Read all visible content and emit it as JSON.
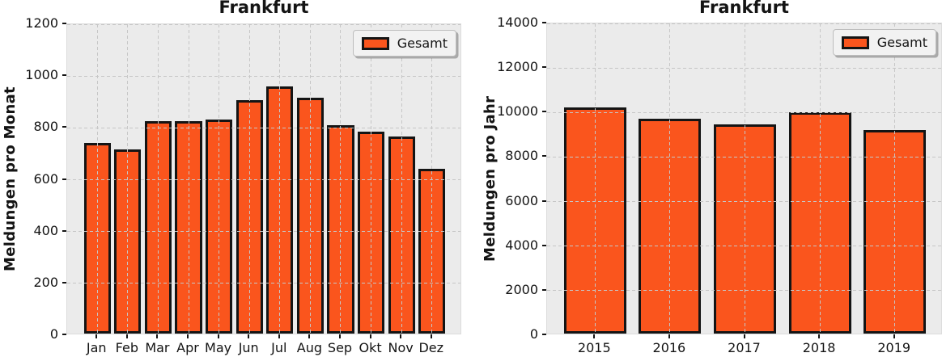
{
  "colors": {
    "figure_bg": "#ffffff",
    "plot_bg": "#ebebeb",
    "bar_fill": "#fa551d",
    "bar_edge": "#141414",
    "grid": "#c6c6c6",
    "text": "#141414",
    "legend_bg": "#f2f2f2",
    "legend_border": "#bdbdbd"
  },
  "chart_data": [
    {
      "type": "bar",
      "title": "Frankfurt",
      "xlabel": "",
      "ylabel": "Meldungen pro Monat",
      "categories": [
        "Jan",
        "Feb",
        "Mar",
        "Apr",
        "May",
        "Jun",
        "Jul",
        "Aug",
        "Sep",
        "Okt",
        "Nov",
        "Dez"
      ],
      "values": [
        730,
        705,
        815,
        815,
        820,
        895,
        950,
        905,
        800,
        775,
        755,
        630
      ],
      "ylim": [
        0,
        1200
      ],
      "yticks": [
        0,
        200,
        400,
        600,
        800,
        1000,
        1200
      ],
      "grid": "dashed, both axes, drawn above bars",
      "legend": {
        "position": "upper-right",
        "entries": [
          "Gesamt"
        ]
      }
    },
    {
      "type": "bar",
      "title": "Frankfurt",
      "xlabel": "",
      "ylabel": "Meldungen pro Jahr",
      "categories": [
        "2015",
        "2016",
        "2017",
        "2018",
        "2019"
      ],
      "values": [
        10100,
        9600,
        9350,
        9900,
        9100
      ],
      "ylim": [
        0,
        14000
      ],
      "yticks": [
        0,
        2000,
        4000,
        6000,
        8000,
        10000,
        12000,
        14000
      ],
      "grid": "dashed, both axes, drawn above bars",
      "legend": {
        "position": "upper-right",
        "entries": [
          "Gesamt"
        ]
      }
    }
  ]
}
